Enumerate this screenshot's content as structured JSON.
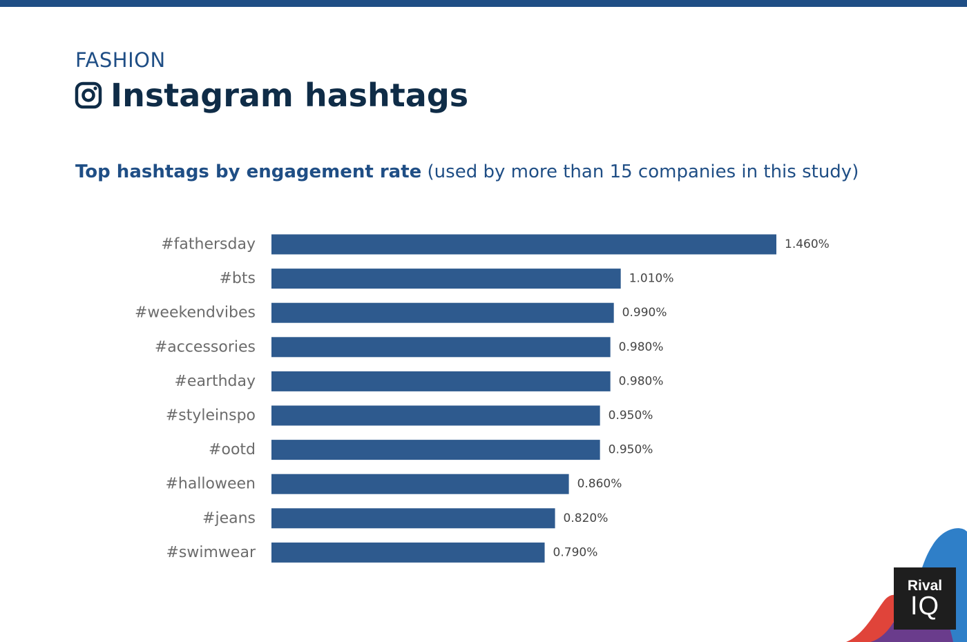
{
  "header": {
    "kicker": "FASHION",
    "title": "Instagram hashtags",
    "subtitle_bold": "Top hashtags by engagement rate",
    "subtitle_rest": "(used by more than 15 companies in this study)",
    "icon": "instagram-icon"
  },
  "colors": {
    "top_bar": "#1f4e85",
    "kicker": "#1f4e85",
    "title": "#0f2c47",
    "subtitle": "#1f4e85",
    "bar": "#2e5a8e",
    "category_label": "#6b6b6b",
    "value_label": "#444444",
    "decor_blue": "#2f7fc8",
    "decor_purple": "#6a3c8c",
    "decor_red": "#e0443a"
  },
  "brand": {
    "logo_line1": "Rival",
    "logo_line2": "IQ"
  },
  "chart_data": {
    "type": "bar",
    "orientation": "horizontal",
    "categories": [
      "#fathersday",
      "#bts",
      "#weekendvibes",
      "#accessories",
      "#earthday",
      "#styleinspo",
      "#ootd",
      "#halloween",
      "#jeans",
      "#swimwear"
    ],
    "values": [
      1.46,
      1.01,
      0.99,
      0.98,
      0.98,
      0.95,
      0.95,
      0.86,
      0.82,
      0.79
    ],
    "value_labels": [
      "1.460%",
      "1.010%",
      "0.990%",
      "0.980%",
      "0.980%",
      "0.950%",
      "0.950%",
      "0.860%",
      "0.820%",
      "0.790%"
    ],
    "title": "Top hashtags by engagement rate",
    "xlabel": "",
    "ylabel": "",
    "grid": false,
    "legend": "none"
  }
}
